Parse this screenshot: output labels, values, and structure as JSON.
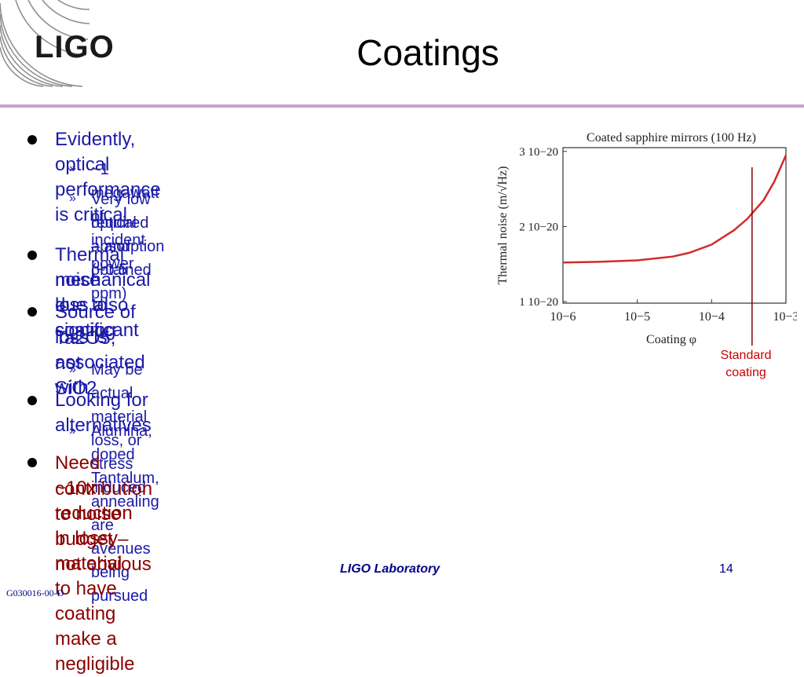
{
  "logo": {
    "text": "LIGO"
  },
  "title": "Coatings",
  "bullets": [
    {
      "text": "Evidently, optical performance is critical",
      "subs": [
        "~1 megawatt of incident power",
        "Very low optical absorption (~0.5 ppm)",
        "required – and obtained"
      ]
    },
    {
      "lines": [
        "Thermal noise due to coating",
        "mechanical loss also significant"
      ]
    },
    {
      "lines": [
        "Source of loss is associated with",
        "Ta2O5, not SiO2"
      ],
      "subs": [
        "May be actual material loss, or stress induced"
      ]
    },
    {
      "text": "Looking for alternatives",
      "subs": [
        "Alumina, doped Tantalum, annealing are avenues being pursued"
      ]
    },
    {
      "lines": [
        "Need ~10x reduction in lossy material to have coating make a negligible",
        "contribution to noise budget – not obvious"
      ],
      "color": "#8b0000"
    }
  ],
  "sub_marker": "»",
  "chart_data": {
    "type": "line",
    "title": "Coated sapphire mirrors (100 Hz)",
    "xlabel": "Coating φ",
    "ylabel": "Thermal noise (m/√Hz)",
    "x_scale": "log",
    "xlim": [
      1e-06,
      0.001
    ],
    "ylim": [
      1e-20,
      3e-20
    ],
    "x_tick_labels": [
      "10−6",
      "10−5",
      "10−4",
      "10−3"
    ],
    "y_tick_labels": [
      "1 10−20",
      "2 10−20",
      "3 10−20"
    ],
    "series": [
      {
        "color": "#d42a2a",
        "x": [
          1e-06,
          3e-06,
          1e-05,
          3e-05,
          5e-05,
          0.0001,
          0.0002,
          0.0003,
          0.0005,
          0.0007,
          0.001
        ],
        "y": [
          1.52e-20,
          1.53e-20,
          1.55e-20,
          1.6e-20,
          1.65e-20,
          1.76e-20,
          1.95e-20,
          2.1e-20,
          2.35e-20,
          2.6e-20,
          2.95e-20
        ]
      }
    ],
    "marker_line": {
      "x": 0.00035,
      "color": "#8b0000"
    },
    "annotation": [
      "Standard",
      "coating"
    ],
    "annotation_color": "#cc0000"
  },
  "footer": {
    "lab": "LIGO Laboratory",
    "page": "14",
    "doc_id": "G030016-00-D"
  },
  "colors": {
    "text_blue": "#1a1aa8",
    "text_red": "#8b0000",
    "rule": "#c8a2c8",
    "footer": "#00008b"
  }
}
